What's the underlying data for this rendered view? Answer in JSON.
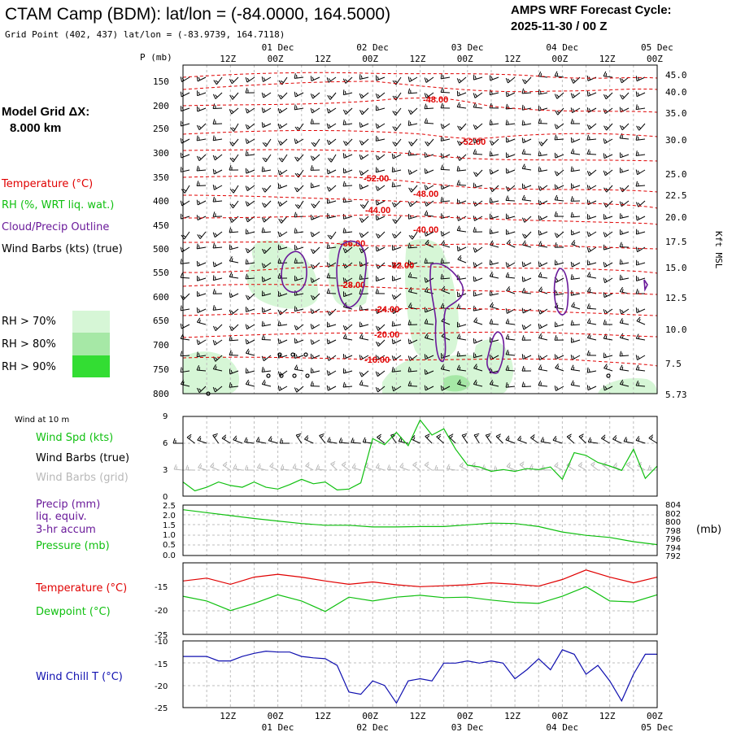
{
  "header": {
    "title": "CTAM Camp (BDM):  lat/lon = (-84.0000, 164.5000)",
    "subtitle": "Grid Point (402, 437) lat/lon = (-83.9739, 164.7118)",
    "forecast_label": "AMPS WRF Forecast Cycle:",
    "forecast_cycle": "2025-11-30 / 00  Z"
  },
  "left_panel": {
    "grid_label": "Model Grid ΔX:",
    "grid_value": "8.000 km",
    "legend_temperature": "Temperature (°C)",
    "legend_rh": "RH (%, WRT liq. wat.)",
    "legend_cloud": "Cloud/Precip Outline",
    "legend_wind": "Wind Barbs (kts) (true)",
    "rh70": "RH > 70%",
    "rh80": "RH > 80%",
    "rh90": "RH > 90%"
  },
  "colors": {
    "temperature": "#e00000",
    "rh": "#10c010",
    "cloud": "#6a1a9a",
    "wind": "#000000",
    "wind_grid": "#b8b8b8",
    "windchill": "#1010b0",
    "rh70": "#d6f6d6",
    "rh80": "#a6e8a6",
    "rh90": "#33dd33",
    "grid": "#bdbdbd"
  },
  "chart_data": [
    {
      "type": "table",
      "name": "upper-air time-height cross section",
      "axis_title_left": "P (mb)",
      "axis_title_right": "Kft MSL",
      "pressure_ticks": [
        "150",
        "200",
        "250",
        "300",
        "350",
        "400",
        "450",
        "500",
        "550",
        "600",
        "650",
        "700",
        "750",
        "800"
      ],
      "height_ticks": [
        "45.0",
        "40.0",
        "35.0",
        "30.0",
        "25.0",
        "22.5",
        "20.0",
        "17.5",
        "15.0",
        "12.5",
        "10.0",
        "7.5",
        "5.73"
      ],
      "time_ticks_top": [
        "12Z",
        "00Z",
        "12Z",
        "00Z",
        "12Z",
        "00Z",
        "12Z",
        "00Z",
        "12Z",
        "00Z"
      ],
      "date_labels_top": [
        "01 Dec",
        "02 Dec",
        "03 Dec",
        "04 Dec",
        "05 Dec"
      ],
      "isotherms": [
        {
          "label": "-48.00",
          "value": -48
        },
        {
          "label": "-52.00",
          "value": -52
        },
        {
          "label": "-52.00",
          "value": -52
        },
        {
          "label": "-48.00",
          "value": -48
        },
        {
          "label": "-44.00",
          "value": -44
        },
        {
          "label": "-40.00",
          "value": -40
        },
        {
          "label": "-36.00",
          "value": -36
        },
        {
          "label": "-32.00",
          "value": -32
        },
        {
          "label": "-28.00",
          "value": -28
        },
        {
          "label": "-24.00",
          "value": -24
        },
        {
          "label": "-20.00",
          "value": -20
        },
        {
          "label": "-16.00",
          "value": -16
        }
      ]
    },
    {
      "type": "line",
      "name": "wind at 10 m",
      "panel_title": "Wind at 10 m",
      "legend": [
        "Wind Spd (kts)",
        "Wind Barbs (true)",
        "Wind Barbs (grid)"
      ],
      "y_ticks": [
        "9",
        "6",
        "3",
        "0"
      ],
      "ylim": [
        0,
        9
      ],
      "x_hours": [
        0,
        3,
        6,
        9,
        12,
        15,
        18,
        21,
        24,
        27,
        30,
        33,
        36,
        39,
        42,
        45,
        48,
        51,
        54,
        57,
        60,
        63,
        66,
        69,
        72,
        75,
        78,
        81,
        84,
        87,
        90,
        93,
        96,
        99,
        102,
        105,
        108,
        111,
        114,
        117,
        120
      ],
      "values": [
        1.6,
        0.6,
        1.0,
        1.6,
        1.2,
        1.0,
        1.6,
        1.0,
        0.8,
        1.3,
        1.9,
        1.4,
        1.6,
        0.7,
        0.8,
        1.5,
        6.5,
        5.8,
        7.2,
        5.7,
        8.6,
        6.9,
        7.6,
        5.3,
        3.5,
        3.3,
        2.8,
        3.0,
        2.8,
        3.1,
        3.0,
        3.3,
        1.9,
        4.9,
        4.6,
        3.8,
        3.4,
        2.9,
        5.3,
        2.0,
        3.4
      ]
    },
    {
      "type": "line",
      "name": "precipitation and pressure",
      "legend": [
        "Precip (mm)",
        "liq. equiv.",
        "3-hr accum",
        "Pressure (mb)"
      ],
      "precip_ticks": [
        "2.5",
        "2.0",
        "1.5",
        "1.0",
        "0.5",
        "0.0"
      ],
      "precip_ylim": [
        0,
        2.5
      ],
      "pressure_ticks": [
        "804",
        "802",
        "800",
        "798",
        "796",
        "794",
        "792"
      ],
      "pressure_ylim": [
        792,
        804
      ],
      "pressure_unit": "(mb)",
      "x_hours": [
        0,
        6,
        12,
        18,
        24,
        30,
        36,
        42,
        48,
        54,
        60,
        66,
        72,
        78,
        84,
        90,
        96,
        102,
        108,
        114,
        120
      ],
      "pressure": [
        802.9,
        802.2,
        801.5,
        800.8,
        800.2,
        799.6,
        799.2,
        799.2,
        798.8,
        798.8,
        798.9,
        798.9,
        799.3,
        799.7,
        799.6,
        798.9,
        797.6,
        796.8,
        796.3,
        795.3,
        794.6
      ],
      "precip": [
        0,
        0,
        0,
        0,
        0,
        0,
        0,
        0,
        0,
        0,
        0,
        0,
        0,
        0,
        0,
        0,
        0,
        0,
        0,
        0,
        0
      ]
    },
    {
      "type": "line",
      "name": "temperature and dewpoint",
      "legend": [
        "Temperature (°C)",
        "Dewpoint (°C)"
      ],
      "y_ticks": [
        "-15",
        "-20",
        "-25"
      ],
      "ylim": [
        -25,
        -10
      ],
      "x_hours": [
        0,
        6,
        12,
        18,
        24,
        30,
        36,
        42,
        48,
        54,
        60,
        66,
        72,
        78,
        84,
        90,
        96,
        102,
        108,
        114,
        120
      ],
      "series": [
        {
          "name": "Temperature",
          "values": [
            -13.8,
            -13.2,
            -14.5,
            -13.0,
            -12.4,
            -13.0,
            -13.8,
            -14.5,
            -14.0,
            -14.6,
            -15.0,
            -14.8,
            -14.6,
            -14.2,
            -14.5,
            -14.9,
            -13.5,
            -11.5,
            -13.0,
            -14.2,
            -13.0
          ]
        },
        {
          "name": "Dewpoint",
          "values": [
            -17.0,
            -18.0,
            -20.0,
            -18.5,
            -16.7,
            -18.0,
            -20.2,
            -17.2,
            -18.0,
            -17.2,
            -16.8,
            -17.3,
            -17.2,
            -17.8,
            -18.3,
            -18.5,
            -17.0,
            -15.0,
            -18.0,
            -18.2,
            -16.7
          ]
        }
      ]
    },
    {
      "type": "line",
      "name": "wind chill",
      "legend": [
        "Wind Chill T (°C)"
      ],
      "y_ticks": [
        "-10",
        "-15",
        "-20",
        "-25"
      ],
      "ylim": [
        -25,
        -10
      ],
      "x_hours": [
        0,
        6,
        9,
        12,
        15,
        18,
        21,
        24,
        27,
        30,
        33,
        36,
        39,
        42,
        45,
        48,
        51,
        54,
        57,
        60,
        63,
        66,
        69,
        72,
        75,
        78,
        81,
        84,
        87,
        90,
        93,
        96,
        99,
        102,
        105,
        108,
        111,
        114,
        117,
        120
      ],
      "values": [
        -13.5,
        -13.5,
        -14.5,
        -14.5,
        -13.5,
        -12.8,
        -12.3,
        -12.5,
        -12.5,
        -13.5,
        -13.8,
        -14.0,
        -15.5,
        -21.5,
        -22.0,
        -19.0,
        -20.0,
        -24.0,
        -19.0,
        -18.5,
        -19.0,
        -15.0,
        -15.0,
        -14.5,
        -15.0,
        -14.5,
        -15.0,
        -18.5,
        -16.5,
        -14.0,
        -16.5,
        -12.0,
        -13.0,
        -17.5,
        -15.5,
        -19.0,
        -23.5,
        -17.5,
        -13.0,
        -13.0
      ],
      "time_ticks_bottom": [
        "12Z",
        "00Z",
        "12Z",
        "00Z",
        "12Z",
        "00Z",
        "12Z",
        "00Z",
        "12Z",
        "00Z"
      ],
      "date_labels_bottom": [
        "01 Dec",
        "02 Dec",
        "03 Dec",
        "04 Dec",
        "05 Dec"
      ]
    }
  ]
}
